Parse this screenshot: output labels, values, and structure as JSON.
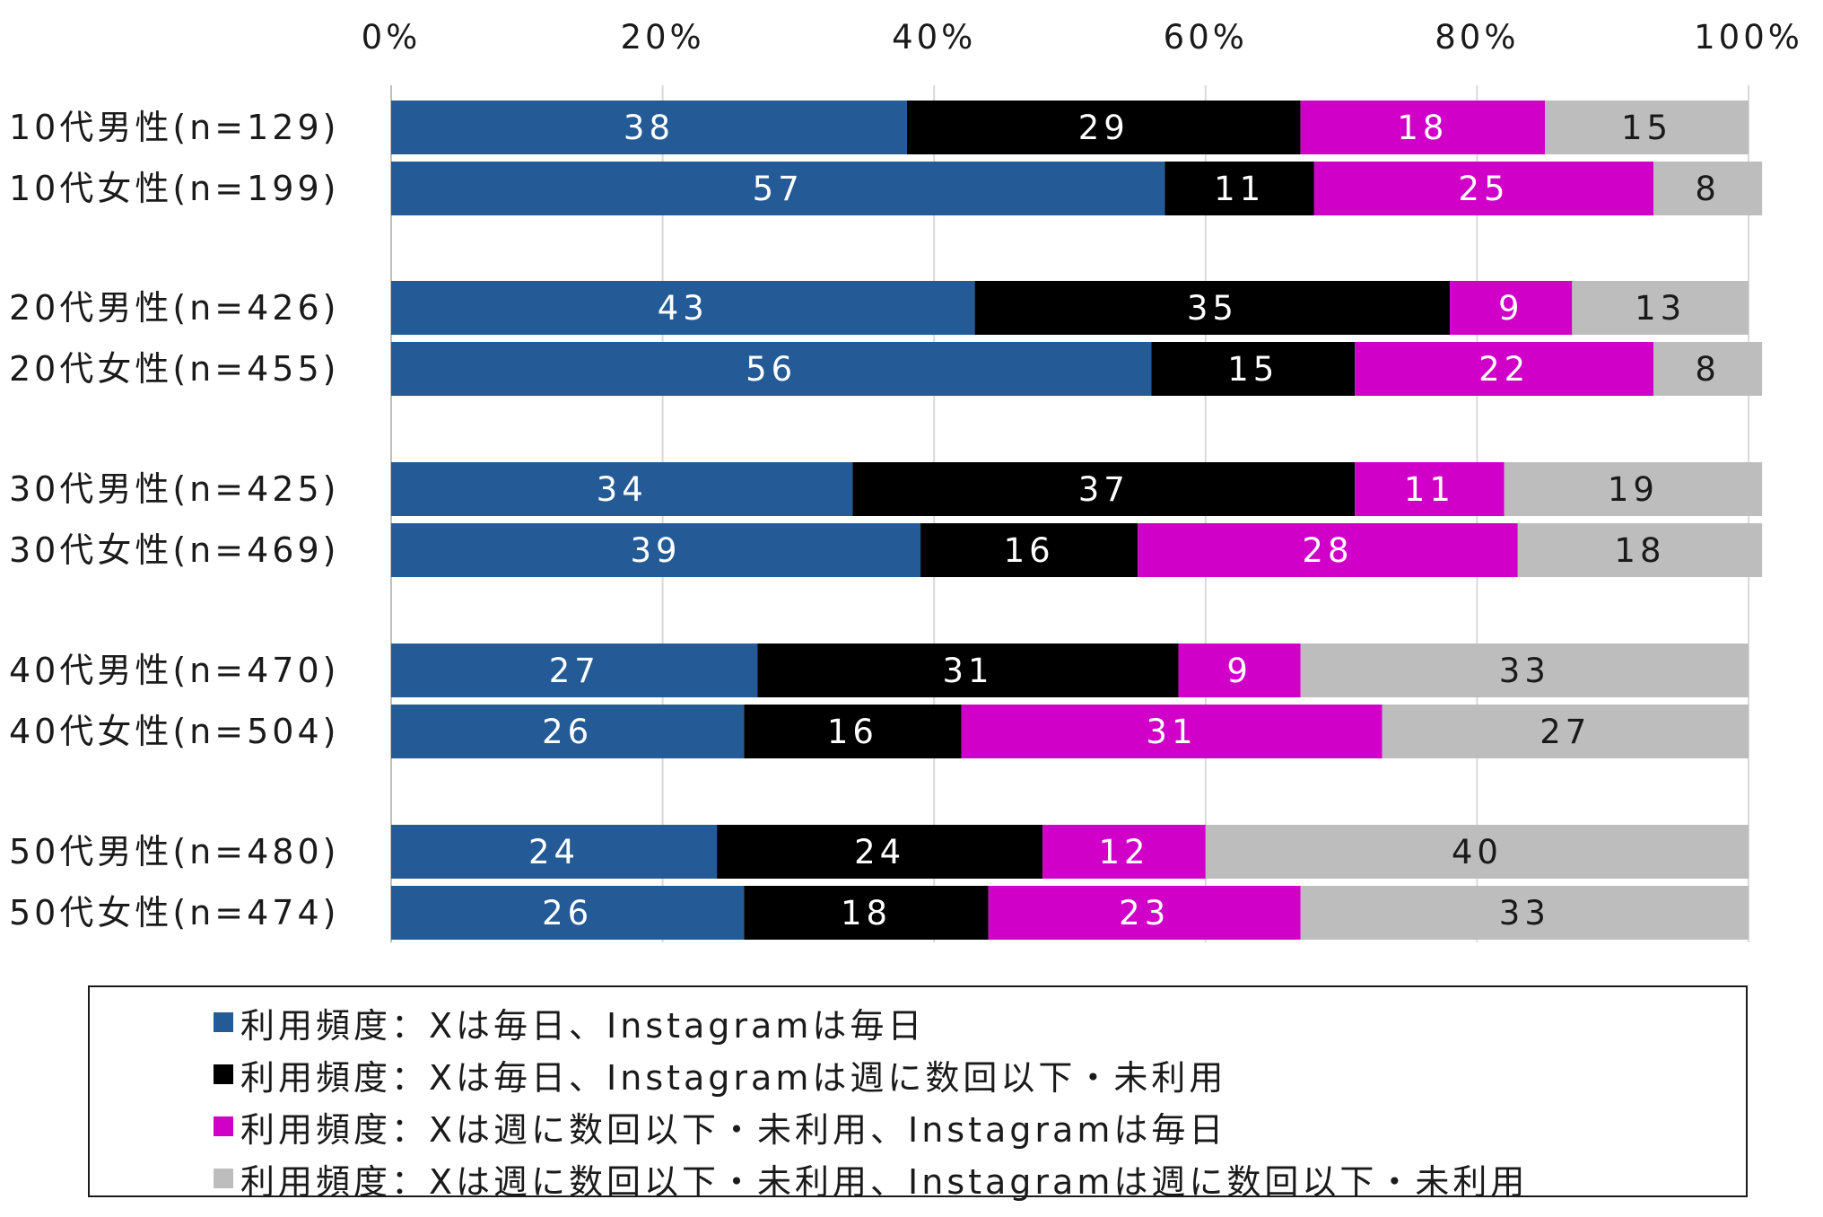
{
  "chart_data": {
    "type": "bar",
    "orientation": "horizontal",
    "stacked": true,
    "percent_stacked": true,
    "x_axis_ticks": [
      "0%",
      "20%",
      "40%",
      "60%",
      "80%",
      "100%"
    ],
    "x_axis_position": "top",
    "xlim": [
      0,
      100
    ],
    "grid": true,
    "legend_position": "bottom",
    "categories": [
      "10代男性(n=129)",
      "10代女性(n=199)",
      "20代男性(n=426)",
      "20代女性(n=455)",
      "30代男性(n=425)",
      "30代女性(n=469)",
      "40代男性(n=470)",
      "40代女性(n=504)",
      "50代男性(n=480)",
      "50代女性(n=474)"
    ],
    "series": [
      {
        "name": "利用頻度：Xは毎日、Instagramは毎日",
        "color": "#245b97",
        "label_color": "#ffffff",
        "values": [
          38,
          57,
          43,
          56,
          34,
          39,
          27,
          26,
          24,
          26
        ]
      },
      {
        "name": "利用頻度：Xは毎日、Instagramは週に数回以下・未利用",
        "color": "#000000",
        "label_color": "#ffffff",
        "values": [
          29,
          11,
          35,
          15,
          37,
          16,
          31,
          16,
          24,
          18
        ]
      },
      {
        "name": "利用頻度：Xは週に数回以下・未利用、Instagramは毎日",
        "color": "#d100c8",
        "label_color": "#ffffff",
        "values": [
          18,
          25,
          9,
          22,
          11,
          28,
          9,
          31,
          12,
          23
        ]
      },
      {
        "name": "利用頻度：Xは週に数回以下・未利用、Instagramは週に数回以下・未利用",
        "color": "#bdbdbd",
        "label_color": "#1a1a1a",
        "values": [
          15,
          8,
          13,
          8,
          19,
          18,
          33,
          27,
          40,
          33
        ]
      }
    ]
  }
}
